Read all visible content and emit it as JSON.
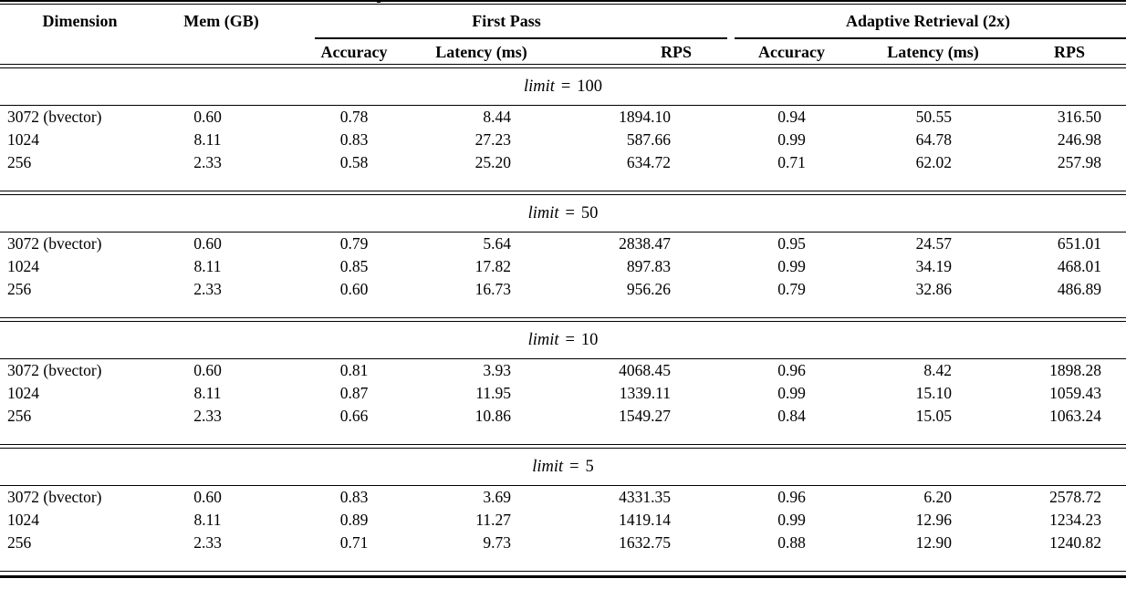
{
  "colors": {
    "text": "#000000",
    "background": "#ffffff",
    "rule": "#000000"
  },
  "table": {
    "columns": [
      "Dimension",
      "Mem (GB)"
    ],
    "groups": [
      {
        "label": "First Pass"
      },
      {
        "label": "Adaptive Retrieval (2x)"
      }
    ],
    "sub_headers": [
      "Accuracy",
      "Latency (ms)",
      "RPS",
      "Accuracy",
      "Latency (ms)",
      "RPS"
    ]
  },
  "sections": [
    {
      "word": "limit",
      "eq": "=",
      "value": "100",
      "rows": [
        [
          "3072 (bvector)",
          "0.60",
          "0.78",
          "8.44",
          "1894.10",
          "0.94",
          "50.55",
          "316.50"
        ],
        [
          "1024",
          "8.11",
          "0.83",
          "27.23",
          "587.66",
          "0.99",
          "64.78",
          "246.98"
        ],
        [
          "256",
          "2.33",
          "0.58",
          "25.20",
          "634.72",
          "0.71",
          "62.02",
          "257.98"
        ]
      ]
    },
    {
      "word": "limit",
      "eq": "=",
      "value": "50",
      "rows": [
        [
          "3072 (bvector)",
          "0.60",
          "0.79",
          "5.64",
          "2838.47",
          "0.95",
          "24.57",
          "651.01"
        ],
        [
          "1024",
          "8.11",
          "0.85",
          "17.82",
          "897.83",
          "0.99",
          "34.19",
          "468.01"
        ],
        [
          "256",
          "2.33",
          "0.60",
          "16.73",
          "956.26",
          "0.79",
          "32.86",
          "486.89"
        ]
      ]
    },
    {
      "word": "limit",
      "eq": "=",
      "value": "10",
      "rows": [
        [
          "3072 (bvector)",
          "0.60",
          "0.81",
          "3.93",
          "4068.45",
          "0.96",
          "8.42",
          "1898.28"
        ],
        [
          "1024",
          "8.11",
          "0.87",
          "11.95",
          "1339.11",
          "0.99",
          "15.10",
          "1059.43"
        ],
        [
          "256",
          "2.33",
          "0.66",
          "10.86",
          "1549.27",
          "0.84",
          "15.05",
          "1063.24"
        ]
      ]
    },
    {
      "word": "limit",
      "eq": "=",
      "value": "5",
      "rows": [
        [
          "3072 (bvector)",
          "0.60",
          "0.83",
          "3.69",
          "4331.35",
          "0.96",
          "6.20",
          "2578.72"
        ],
        [
          "1024",
          "8.11",
          "0.89",
          "11.27",
          "1419.14",
          "0.99",
          "12.96",
          "1234.23"
        ],
        [
          "256",
          "2.33",
          "0.71",
          "9.73",
          "1632.75",
          "0.88",
          "12.90",
          "1240.82"
        ]
      ]
    }
  ]
}
